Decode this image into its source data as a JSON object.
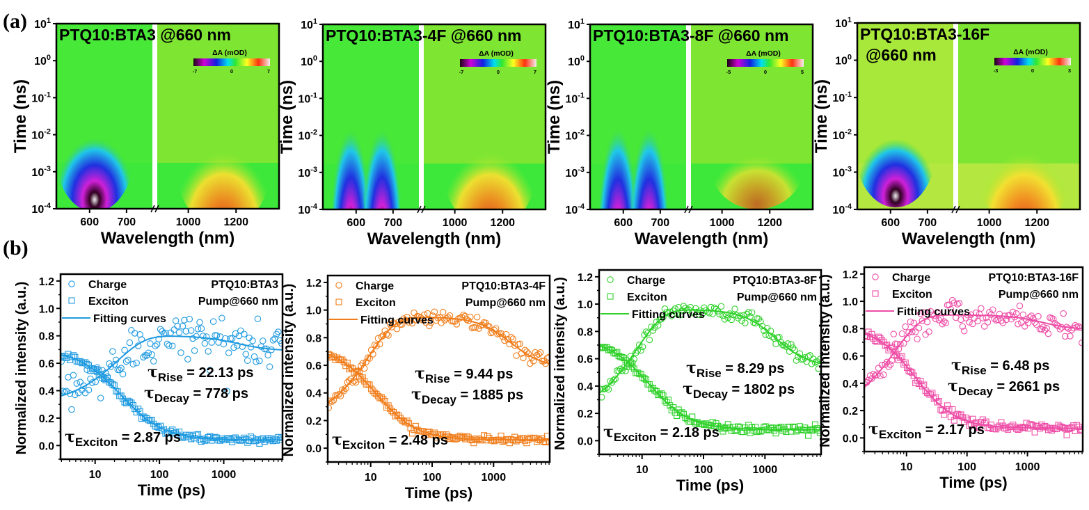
{
  "panel_labels": {
    "a": "(a)",
    "b": "(b)"
  },
  "chart_data": [
    {
      "type": "heatmap",
      "panel": "a",
      "title": "PTQ10:BTA3 @660 nm",
      "xlabel": "Wavelength (nm)",
      "ylabel": "Time (ns)",
      "yscale": "log",
      "ylim": [
        0.0001,
        10
      ],
      "yticks": [
        "10-4",
        "10-3",
        "10-2",
        "10-1",
        "100",
        "101"
      ],
      "xbreak": true,
      "xlim_left": [
        510,
        770
      ],
      "xlim_right": [
        870,
        1380
      ],
      "xticks_left": [
        600,
        700
      ],
      "xticks_right": [
        1000,
        1200
      ],
      "colorbar": {
        "label": "ΔA (mOD)",
        "min": -7,
        "mid": 0,
        "max": 7,
        "tick_labels": [
          "-7",
          "0",
          "7"
        ]
      },
      "features": [
        {
          "name": "ground-state bleach",
          "region": "left",
          "center_nm": 600,
          "sign": "negative",
          "time_range_ns": [
            0.001,
            0.1
          ]
        },
        {
          "name": "induced absorption",
          "region": "right",
          "center_nm": 1130,
          "sign": "positive",
          "time_range_ns": [
            0.001,
            0.03
          ]
        }
      ]
    },
    {
      "type": "heatmap",
      "panel": "a",
      "title": "PTQ10:BTA3-4F @660 nm",
      "xlabel": "Wavelength (nm)",
      "ylabel": "Time (ns)",
      "yscale": "log",
      "ylim": [
        0.0001,
        10
      ],
      "yticks": [
        "10-4",
        "10-3",
        "10-2",
        "10-1",
        "100",
        "101"
      ],
      "xbreak": true,
      "xlim_left": [
        510,
        770
      ],
      "xlim_right": [
        870,
        1380
      ],
      "xticks_left": [
        600,
        700
      ],
      "xticks_right": [
        1000,
        1200
      ],
      "colorbar": {
        "label": "ΔA (mOD)",
        "min": -7,
        "mid": 0,
        "max": 7,
        "tick_labels": [
          "-7",
          "0",
          "7"
        ]
      },
      "features": [
        {
          "name": "ground-state bleach",
          "region": "left",
          "center_nm": 560,
          "sign": "negative",
          "time_range_ns": [
            0.001,
            3
          ]
        },
        {
          "name": "ground-state bleach",
          "region": "left",
          "center_nm": 620,
          "sign": "negative",
          "time_range_ns": [
            0.001,
            3
          ]
        },
        {
          "name": "induced absorption",
          "region": "right",
          "center_nm": 1130,
          "sign": "positive",
          "time_range_ns": [
            0.001,
            0.02
          ]
        }
      ]
    },
    {
      "type": "heatmap",
      "panel": "a",
      "title": "PTQ10:BTA3-8F @660 nm",
      "xlabel": "Wavelength (nm)",
      "ylabel": "Time (ns)",
      "yscale": "log",
      "ylim": [
        0.0001,
        10
      ],
      "yticks": [
        "10-4",
        "10-3",
        "10-2",
        "10-1",
        "100",
        "101"
      ],
      "xbreak": true,
      "xlim_left": [
        510,
        770
      ],
      "xlim_right": [
        870,
        1380
      ],
      "xticks_left": [
        600,
        700
      ],
      "xticks_right": [
        1000,
        1200
      ],
      "colorbar": {
        "label": "ΔA (mOD)",
        "min": -5,
        "mid": 0,
        "max": 5,
        "tick_labels": [
          "-5",
          "0",
          "5"
        ]
      },
      "features": [
        {
          "name": "ground-state bleach",
          "region": "left",
          "center_nm": 565,
          "sign": "negative",
          "time_range_ns": [
            0.001,
            5
          ]
        },
        {
          "name": "ground-state bleach",
          "region": "left",
          "center_nm": 620,
          "sign": "negative",
          "time_range_ns": [
            0.001,
            5
          ]
        },
        {
          "name": "induced absorption",
          "region": "right",
          "center_nm": 1130,
          "sign": "positive",
          "time_range_ns": [
            0.001,
            0.01
          ]
        }
      ]
    },
    {
      "type": "heatmap",
      "panel": "a",
      "title": "PTQ10:BTA3-16F @660 nm",
      "title_lines": [
        "PTQ10:BTA3-16F",
        "@660 nm"
      ],
      "xlabel": "Wavelength (nm)",
      "ylabel": "Time (ns)",
      "yscale": "log",
      "ylim": [
        0.0001,
        10
      ],
      "yticks": [
        "10-4",
        "10-3",
        "10-2",
        "10-1",
        "100",
        "101"
      ],
      "xbreak": true,
      "xlim_left": [
        510,
        770
      ],
      "xlim_right": [
        870,
        1380
      ],
      "xticks_left": [
        600,
        700
      ],
      "xticks_right": [
        1000,
        1200
      ],
      "colorbar": {
        "label": "ΔA (mOD)",
        "min": -3,
        "mid": 0,
        "max": 3,
        "tick_labels": [
          "-3",
          "0",
          "3"
        ]
      },
      "features": [
        {
          "name": "ground-state bleach",
          "region": "left",
          "center_nm": 600,
          "sign": "negative",
          "time_range_ns": [
            0.0015,
            0.1
          ]
        },
        {
          "name": "induced absorption",
          "region": "right",
          "center_nm": 1130,
          "sign": "positive",
          "time_range_ns": [
            0.001,
            0.03
          ]
        }
      ]
    },
    {
      "type": "scatter",
      "panel": "b",
      "sample": "PTQ10:BTA3",
      "pump": "Pump@660 nm",
      "color": "#1f9ae0",
      "xlabel": "Time (ps)",
      "ylabel": "Normalized intensity (a.u.)",
      "xscale": "log",
      "xlim": [
        2.9,
        8200
      ],
      "ylim": [
        -0.1,
        1.25
      ],
      "xticks": [
        10,
        100,
        1000
      ],
      "yticks": [
        0.0,
        0.2,
        0.4,
        0.6,
        0.8,
        1.0,
        1.2
      ],
      "legend": [
        "Charge",
        "Exciton",
        "Fitting curves"
      ],
      "annotations": {
        "rise": "22.13 ps",
        "decay": "778 ps",
        "exciton": "2.87 ps"
      },
      "fit": {
        "charge": {
          "y0": 0.3,
          "amp": 0.5,
          "rise_ps": 22.13,
          "tail": 0.69,
          "tail_center_ps": 1600,
          "tail_drop": 0.11
        },
        "exciton": {
          "start": 0.7,
          "tau_ps": 2.87,
          "end": 0.04,
          "center_ps": 25
        }
      },
      "noise": {
        "charge": 0.09,
        "exciton": 0.015
      },
      "series": [
        {
          "name": "Charge",
          "marker": "circle"
        },
        {
          "name": "Exciton",
          "marker": "square"
        }
      ]
    },
    {
      "type": "scatter",
      "panel": "b",
      "sample": "PTQ10:BTA3-4F",
      "pump": "Pump@660 nm",
      "color": "#f07d1a",
      "xlabel": "Time (ps)",
      "ylabel": "Normalized intensity (a.u.)",
      "xscale": "log",
      "xlim": [
        2.0,
        8200
      ],
      "ylim": [
        -0.1,
        1.25
      ],
      "xticks": [
        10,
        100,
        1000
      ],
      "yticks": [
        0.0,
        0.2,
        0.4,
        0.6,
        0.8,
        1.0,
        1.2
      ],
      "legend": [
        "Charge",
        "Exciton",
        "Fitting curves"
      ],
      "annotations": {
        "rise": "9.44 ps",
        "decay": "1885 ps",
        "exciton": "2.48 ps"
      },
      "fit": {
        "charge": {
          "y0": 0.18,
          "amp": 0.77,
          "rise_ps": 9.44,
          "tail": 0.58,
          "tail_center_ps": 1885,
          "tail_drop": 0.37
        },
        "exciton": {
          "start": 0.74,
          "tau_ps": 2.48,
          "end": 0.06,
          "center_ps": 12
        }
      },
      "noise": {
        "charge": 0.025,
        "exciton": 0.012
      },
      "series": [
        {
          "name": "Charge",
          "marker": "circle"
        },
        {
          "name": "Exciton",
          "marker": "square"
        }
      ]
    },
    {
      "type": "scatter",
      "panel": "b",
      "sample": "PTQ10:BTA3-8F",
      "pump": "Pump@660 nm",
      "color": "#2fd12a",
      "xlabel": "Time (ps)",
      "ylabel": "Normalized intensity (a.u.)",
      "xscale": "log",
      "xlim": [
        2.0,
        8200
      ],
      "ylim": [
        -0.1,
        1.25
      ],
      "xticks": [
        10,
        100,
        1000
      ],
      "yticks": [
        0.0,
        0.2,
        0.4,
        0.6,
        0.8,
        1.0,
        1.2
      ],
      "legend": [
        "Charge",
        "Exciton",
        "Fitting curves"
      ],
      "annotations": {
        "rise": "8.29 ps",
        "decay": "1802 ps",
        "exciton": "2.18 ps"
      },
      "fit": {
        "charge": {
          "y0": 0.18,
          "amp": 0.78,
          "rise_ps": 8.29,
          "tail": 0.54,
          "tail_center_ps": 1500,
          "tail_drop": 0.42
        },
        "exciton": {
          "start": 0.75,
          "tau_ps": 2.18,
          "end": 0.08,
          "center_ps": 13
        }
      },
      "noise": {
        "charge": 0.025,
        "exciton": 0.015
      },
      "series": [
        {
          "name": "Charge",
          "marker": "circle"
        },
        {
          "name": "Exciton",
          "marker": "square"
        }
      ]
    },
    {
      "type": "scatter",
      "panel": "b",
      "sample": "PTQ10:BTA3-16F",
      "pump": "Pump@660 nm",
      "color": "#ee4da6",
      "xlabel": "Time (ps)",
      "ylabel": "Normalized intensity (a.u.)",
      "xscale": "log",
      "xlim": [
        2.0,
        8200
      ],
      "ylim": [
        -0.1,
        1.25
      ],
      "xticks": [
        10,
        100,
        1000
      ],
      "yticks": [
        0.0,
        0.2,
        0.4,
        0.6,
        0.8,
        1.0,
        1.2
      ],
      "legend": [
        "Charge",
        "Exciton",
        "Fitting curves"
      ],
      "annotations": {
        "rise": "6.48 ps",
        "decay": "2661 ps",
        "exciton": "2.17 ps"
      },
      "fit": {
        "charge": {
          "y0": 0.18,
          "amp": 0.72,
          "rise_ps": 6.48,
          "tail": 0.79,
          "tail_center_ps": 1800,
          "tail_drop": 0.11
        },
        "exciton": {
          "start": 0.82,
          "tau_ps": 2.17,
          "end": 0.07,
          "center_ps": 14
        }
      },
      "noise": {
        "charge": 0.05,
        "exciton": 0.018
      },
      "series": [
        {
          "name": "Charge",
          "marker": "circle"
        },
        {
          "name": "Exciton",
          "marker": "square"
        }
      ]
    }
  ]
}
